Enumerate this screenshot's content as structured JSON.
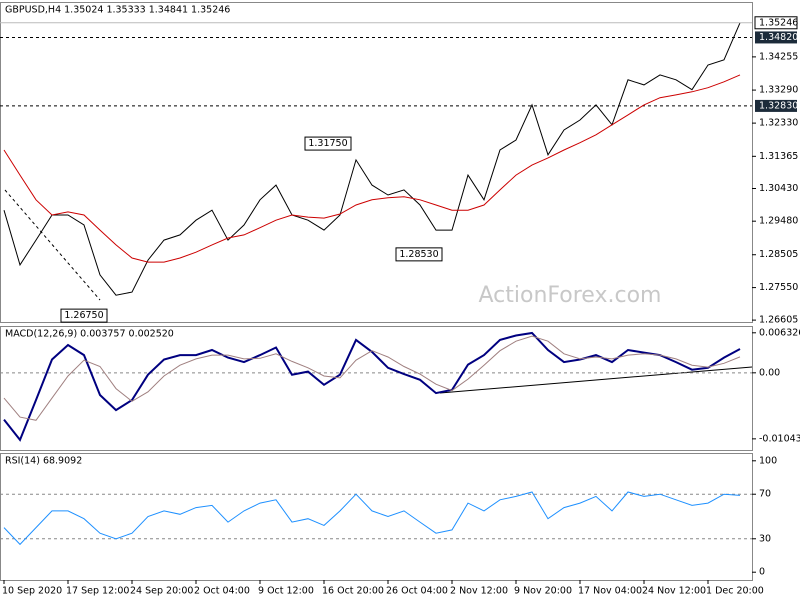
{
  "header": "GBPUSD,H4  1.35024 1.35333 1.34841 1.35246",
  "watermark": "ActionForex.com",
  "chart_data": [
    {
      "type": "line",
      "categories": [
        "10 Sep 2020",
        null,
        null,
        null,
        "17 Sep 12:00",
        null,
        null,
        null,
        "24 Sep 20:00",
        null,
        null,
        null,
        "2 Oct 04:00",
        null,
        null,
        null,
        "9 Oct 12:00",
        null,
        null,
        null,
        "16 Oct 20:00",
        null,
        null,
        null,
        "26 Oct 04:00",
        null,
        null,
        null,
        "2 Nov 12:00",
        null,
        null,
        null,
        "9 Nov 20:00",
        null,
        null,
        null,
        "17 Nov 04:00",
        null,
        null,
        null,
        "24 Nov 12:00",
        null,
        null,
        null,
        "1 Dec 20:00",
        null,
        null
      ],
      "series": [
        {
          "color": "#000000",
          "values": [
            1.298,
            1.2821,
            1.2893,
            1.2966,
            1.2966,
            1.2937,
            1.2792,
            1.2733,
            1.2742,
            1.2835,
            1.2893,
            1.2908,
            1.2951,
            1.298,
            1.2893,
            1.2937,
            1.301,
            1.3053,
            1.2966,
            1.2951,
            1.2922,
            1.2966,
            1.3126,
            1.3053,
            1.3024,
            1.3039,
            1.2995,
            1.2922,
            1.2922,
            1.3082,
            1.301,
            1.3155,
            1.3184,
            1.3286,
            1.3141,
            1.3213,
            1.3242,
            1.3286,
            1.3228,
            1.3359,
            1.3344,
            1.3373,
            1.3359,
            1.333,
            1.3402,
            1.3417,
            1.35246
          ]
        },
        {
          "color": "#cc0000",
          "values": [
            1.3155,
            1.3082,
            1.301,
            1.2966,
            1.2975,
            1.2966,
            1.2922,
            1.2879,
            1.2841,
            1.2829,
            1.2829,
            1.2841,
            1.2858,
            1.2879,
            1.2899,
            1.2908,
            1.2929,
            1.2951,
            1.2966,
            1.296,
            1.2957,
            1.2969,
            1.2995,
            1.301,
            1.3016,
            1.3019,
            1.301,
            1.2995,
            1.298,
            1.298,
            1.2995,
            1.3039,
            1.3082,
            1.3111,
            1.3132,
            1.3155,
            1.3176,
            1.3199,
            1.3228,
            1.3257,
            1.3286,
            1.3307,
            1.3315,
            1.3324,
            1.3336,
            1.3353,
            1.3373
          ]
        }
      ],
      "ylim": [
        1.2655,
        1.3585
      ],
      "yticks": [
        1.34255,
        {
          "value": 1.3329,
          "label": "1.33290"
        },
        {
          "value": 1.3233,
          "label": "1.32330"
        },
        1.31365,
        {
          "value": 1.3043,
          "label": "1.30430"
        },
        {
          "value": 1.2948,
          "label": "1.29480"
        },
        1.28505,
        {
          "value": 1.2755,
          "label": "1.27550"
        },
        1.26605
      ],
      "levels": [
        {
          "value": 1.3482,
          "label": "1.34820"
        },
        {
          "value": 1.3283,
          "label": "1.32830"
        }
      ],
      "annotations": [
        {
          "value": 1.3175,
          "label": "1.31750"
        },
        {
          "value": 1.2853,
          "label": "1.28530"
        },
        {
          "value": 1.2675,
          "label": "1.26750"
        }
      ]
    },
    {
      "type": "line",
      "title": "MACD(12,26,9) 0.003757 0.002520",
      "series": [
        {
          "color": "#000080",
          "values": [
            -0.0074,
            -0.0106,
            -0.0043,
            0.0021,
            0.0044,
            0.0028,
            -0.0035,
            -0.0059,
            -0.0043,
            -0.0003,
            0.0021,
            0.0028,
            0.0028,
            0.0036,
            0.0024,
            0.0017,
            0.0028,
            0.004,
            -0.0003,
            0.0002,
            -0.0019,
            -0.0003,
            0.0052,
            0.0033,
            0.0008,
            -0.0002,
            -0.0011,
            -0.0032,
            -0.0027,
            0.0013,
            0.0028,
            0.0052,
            0.0059,
            0.0063,
            0.0036,
            0.0017,
            0.0021,
            0.0028,
            0.0017,
            0.0036,
            0.0032,
            0.0028,
            0.0017,
            0.0005,
            0.0008,
            0.0024,
            0.003757
          ]
        },
        {
          "color": "#a08080",
          "values": [
            -0.004,
            -0.007,
            -0.0075,
            -0.004,
            -0.0005,
            0.002,
            0.001,
            -0.0025,
            -0.0045,
            -0.003,
            -0.0005,
            0.0012,
            0.0022,
            0.0028,
            0.0028,
            0.0022,
            0.0023,
            0.003,
            0.0018,
            0.0008,
            -0.0005,
            -0.0008,
            0.002,
            0.0035,
            0.0025,
            0.001,
            -0.0002,
            -0.0018,
            -0.0028,
            -0.001,
            0.0012,
            0.0035,
            0.005,
            0.0058,
            0.005,
            0.003,
            0.0022,
            0.0025,
            0.0022,
            0.0028,
            0.003,
            0.0028,
            0.0022,
            0.0012,
            0.0009,
            0.0015,
            0.00252
          ]
        }
      ],
      "ylim": [
        -0.0122,
        0.0074
      ],
      "yticks": [
        0.006326,
        {
          "value": 0,
          "label": "0.00"
        },
        -0.010438
      ],
      "levels": [
        0
      ]
    },
    {
      "type": "line",
      "title": "RSI(14) 68.9092",
      "series": [
        {
          "color": "#1e90ff",
          "values": [
            40,
            25,
            40,
            55,
            55,
            48,
            35,
            30,
            35,
            50,
            55,
            52,
            58,
            60,
            45,
            55,
            62,
            65,
            45,
            48,
            42,
            55,
            70,
            55,
            50,
            55,
            45,
            35,
            38,
            62,
            55,
            65,
            68,
            72,
            48,
            58,
            62,
            68,
            55,
            72,
            68,
            70,
            65,
            60,
            62,
            70,
            68.9092
          ]
        }
      ],
      "ylim": [
        -7,
        107
      ],
      "yticks": [
        100,
        70,
        30,
        0
      ],
      "levels": [
        70,
        30
      ]
    }
  ]
}
